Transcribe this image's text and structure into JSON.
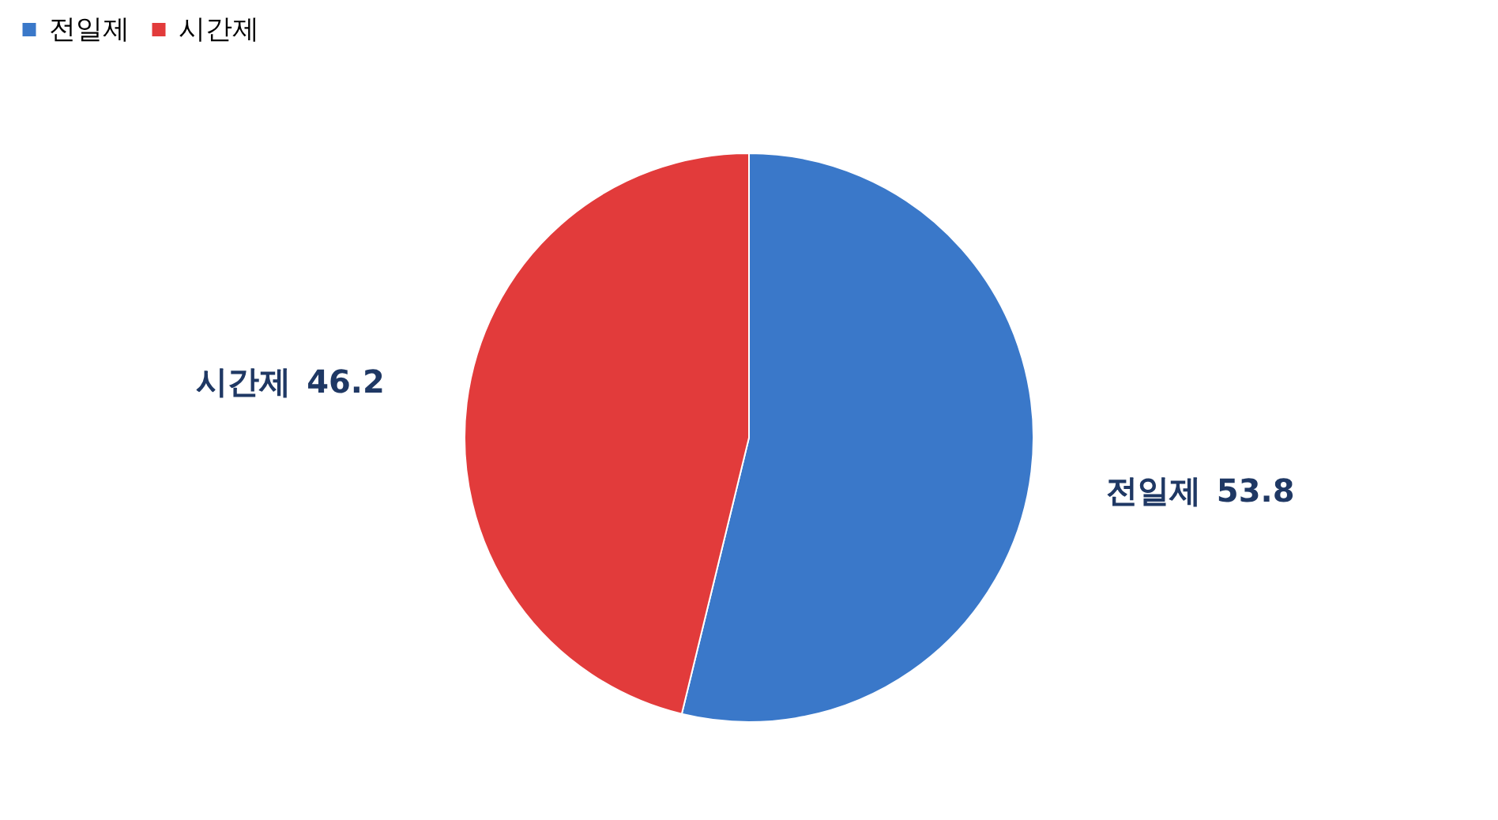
{
  "chart_data": {
    "type": "pie",
    "categories": [
      "전일제",
      "시간제"
    ],
    "values": [
      53.8,
      46.2
    ],
    "colors": [
      "#3a78c9",
      "#e23b3b"
    ],
    "data_labels": true,
    "legend": "top"
  }
}
